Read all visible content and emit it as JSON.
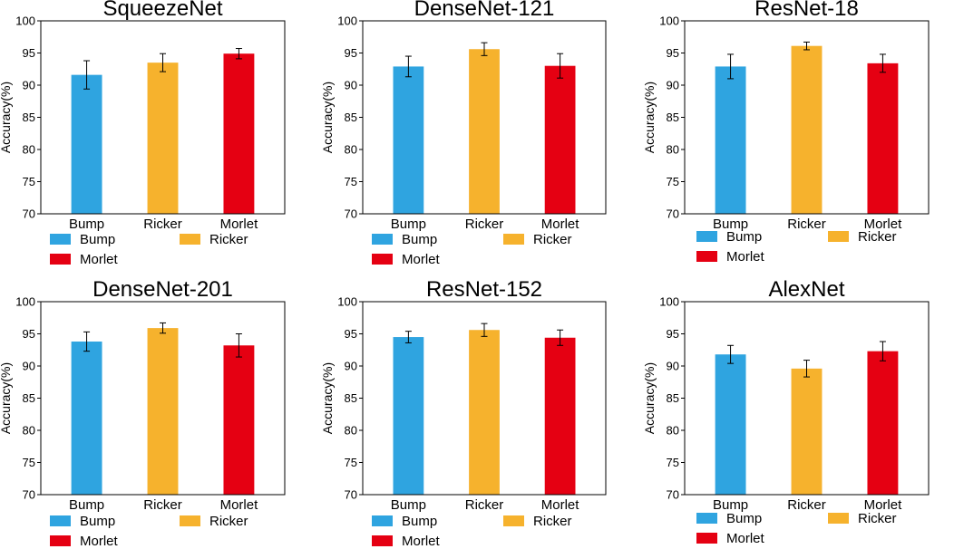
{
  "chart_data": [
    {
      "type": "bar",
      "title": "SqueezeNet",
      "categories": [
        "Bump",
        "Ricker",
        "Morlet"
      ],
      "values": [
        91.6,
        93.5,
        94.9
      ],
      "errors": [
        2.2,
        1.4,
        0.8
      ],
      "ylabel": "Accuracy(%)",
      "ylim": [
        70,
        100
      ],
      "yticks": [
        70,
        75,
        80,
        85,
        90,
        95,
        100
      ],
      "legend": [
        "Bump",
        "Ricker",
        "Morlet"
      ]
    },
    {
      "type": "bar",
      "title": "DenseNet-121",
      "categories": [
        "Bump",
        "Ricker",
        "Morlet"
      ],
      "values": [
        92.9,
        95.6,
        93.0
      ],
      "errors": [
        1.6,
        1.0,
        1.9
      ],
      "ylabel": "Accuracy(%)",
      "ylim": [
        70,
        100
      ],
      "yticks": [
        70,
        75,
        80,
        85,
        90,
        95,
        100
      ],
      "legend": [
        "Bump",
        "Ricker",
        "Morlet"
      ]
    },
    {
      "type": "bar",
      "title": "ResNet-18",
      "categories": [
        "Bump",
        "Ricker",
        "Morlet"
      ],
      "values": [
        92.9,
        96.1,
        93.4
      ],
      "errors": [
        1.9,
        0.6,
        1.4
      ],
      "ylabel": "Accuracy(%)",
      "ylim": [
        70,
        100
      ],
      "yticks": [
        70,
        75,
        80,
        85,
        90,
        95,
        100
      ],
      "legend": [
        "Bump",
        "Ricker",
        "Morlet"
      ]
    },
    {
      "type": "bar",
      "title": "DenseNet-201",
      "categories": [
        "Bump",
        "Ricker",
        "Morlet"
      ],
      "values": [
        93.8,
        95.9,
        93.2
      ],
      "errors": [
        1.5,
        0.8,
        1.8
      ],
      "ylabel": "Accuracy(%)",
      "ylim": [
        70,
        100
      ],
      "yticks": [
        70,
        75,
        80,
        85,
        90,
        95,
        100
      ],
      "legend": [
        "Bump",
        "Ricker",
        "Morlet"
      ]
    },
    {
      "type": "bar",
      "title": "ResNet-152",
      "categories": [
        "Bump",
        "Ricker",
        "Morlet"
      ],
      "values": [
        94.5,
        95.6,
        94.4
      ],
      "errors": [
        0.9,
        1.0,
        1.2
      ],
      "ylabel": "Accuracy(%)",
      "ylim": [
        70,
        100
      ],
      "yticks": [
        70,
        75,
        80,
        85,
        90,
        95,
        100
      ],
      "legend": [
        "Bump",
        "Ricker",
        "Morlet"
      ]
    },
    {
      "type": "bar",
      "title": "AlexNet",
      "categories": [
        "Bump",
        "Ricker",
        "Morlet"
      ],
      "values": [
        91.8,
        89.6,
        92.3
      ],
      "errors": [
        1.4,
        1.3,
        1.5
      ],
      "ylabel": "Accuracy(%)",
      "ylim": [
        70,
        100
      ],
      "yticks": [
        70,
        75,
        80,
        85,
        90,
        95,
        100
      ],
      "legend": [
        "Bump",
        "Ricker",
        "Morlet"
      ]
    }
  ],
  "colors": {
    "Bump": "#2fa4e0",
    "Ricker": "#f6b22d",
    "Morlet": "#e50012"
  }
}
